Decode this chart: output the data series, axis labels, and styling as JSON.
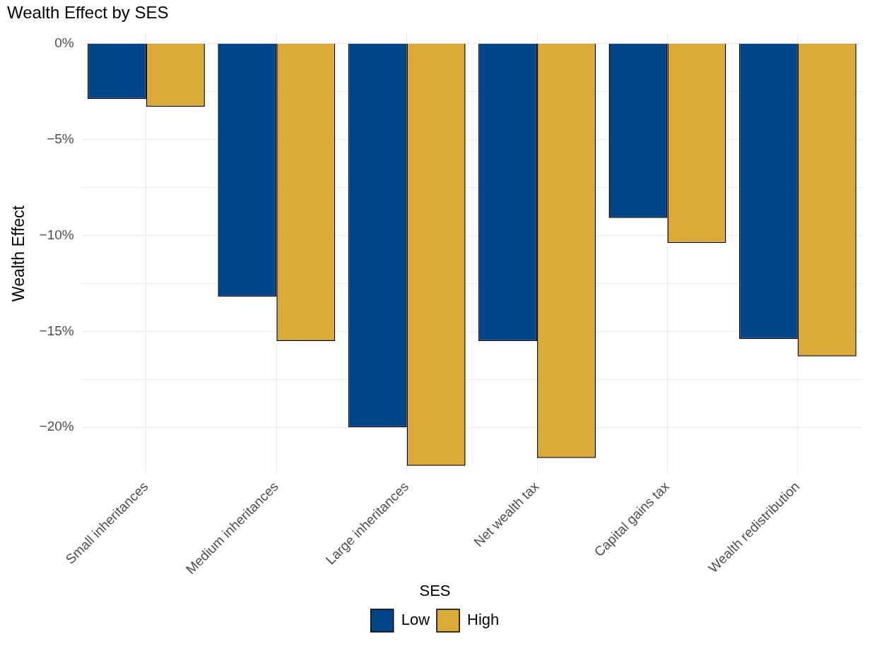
{
  "chart_data": {
    "type": "bar",
    "title": "Wealth Effect by SES",
    "ylabel": "Wealth Effect",
    "legend_title": "SES",
    "categories": [
      "Small inheritances",
      "Medium inheritances",
      "Large inheritances",
      "Net wealth tax",
      "Capital gains tax",
      "Wealth redistribution"
    ],
    "series": [
      {
        "name": "Low",
        "color": "#00468b",
        "values": [
          -2.9,
          -13.2,
          -20.0,
          -15.5,
          -9.1,
          -15.4
        ]
      },
      {
        "name": "High",
        "color": "#dcaa37",
        "values": [
          -3.3,
          -15.5,
          -22.0,
          -21.6,
          -10.4,
          -16.3
        ]
      }
    ],
    "ylim": [
      -22.4,
      0.5
    ],
    "yticks": [
      {
        "value": -20,
        "label": "−20%"
      },
      {
        "value": -17.5,
        "label": null
      },
      {
        "value": -15,
        "label": "−15%"
      },
      {
        "value": -12.5,
        "label": null
      },
      {
        "value": -10,
        "label": "−10%"
      },
      {
        "value": -7.5,
        "label": null
      },
      {
        "value": -5,
        "label": "−5%"
      },
      {
        "value": -2.5,
        "label": null
      },
      {
        "value": 0,
        "label": "0%"
      }
    ],
    "grid": true,
    "legend": "bottom"
  }
}
